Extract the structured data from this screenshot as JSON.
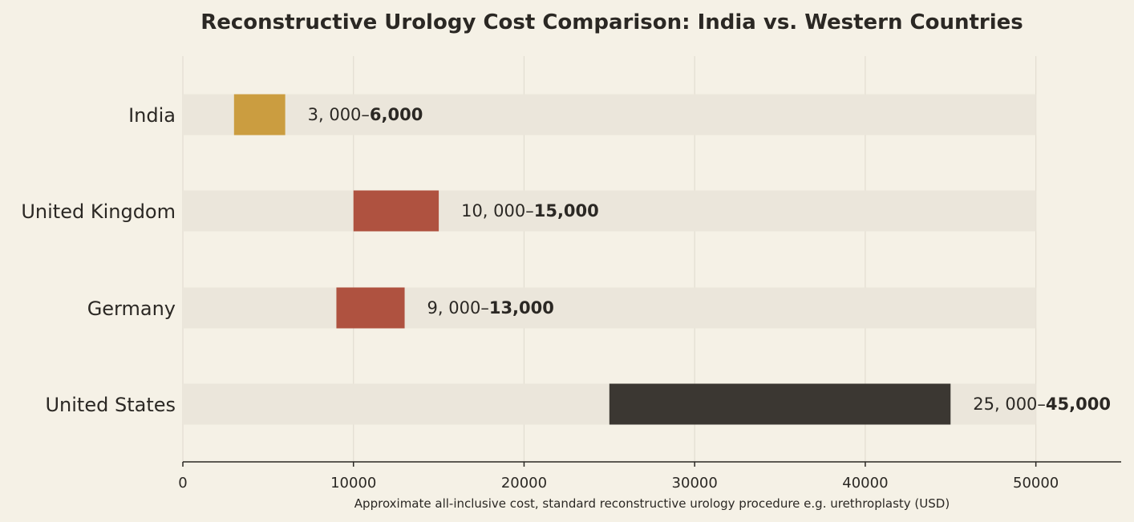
{
  "chart_data": {
    "type": "bar",
    "orientation": "horizontal",
    "title": "Reconstructive Urology Cost Comparison: India vs. Western Countries",
    "xlabel": "Approximate all-inclusive cost, standard reconstructive urology procedure e.g. urethroplasty (USD)",
    "ylabel": "",
    "xlim": [
      0,
      55000
    ],
    "xticks": [
      0,
      10000,
      20000,
      30000,
      40000,
      50000
    ],
    "xtick_labels": [
      "0",
      "10000",
      "20000",
      "30000",
      "40000",
      "50000"
    ],
    "background_max": 50000,
    "grid": "vertical",
    "categories": [
      "India",
      "United Kingdom",
      "Germany",
      "United States"
    ],
    "ranges": [
      {
        "low": 3000,
        "high": 6000,
        "label_prefix": "3, 000–",
        "label_bold": "6,000",
        "color": "#c8952f"
      },
      {
        "low": 10000,
        "high": 15000,
        "label_prefix": "10, 000–",
        "label_bold": "15,000",
        "color": "#a8412f"
      },
      {
        "low": 9000,
        "high": 13000,
        "label_prefix": "9, 000–",
        "label_bold": "13,000",
        "color": "#a8412f"
      },
      {
        "low": 25000,
        "high": 45000,
        "label_prefix": "25, 000–",
        "label_bold": "45,000",
        "color": "#2b2824"
      }
    ]
  },
  "colors": {
    "background": "#f5f1e6",
    "track": "#ebe6db",
    "grid": "#e2ddd1",
    "axis": "#2b2824",
    "text": "#2b2824"
  }
}
